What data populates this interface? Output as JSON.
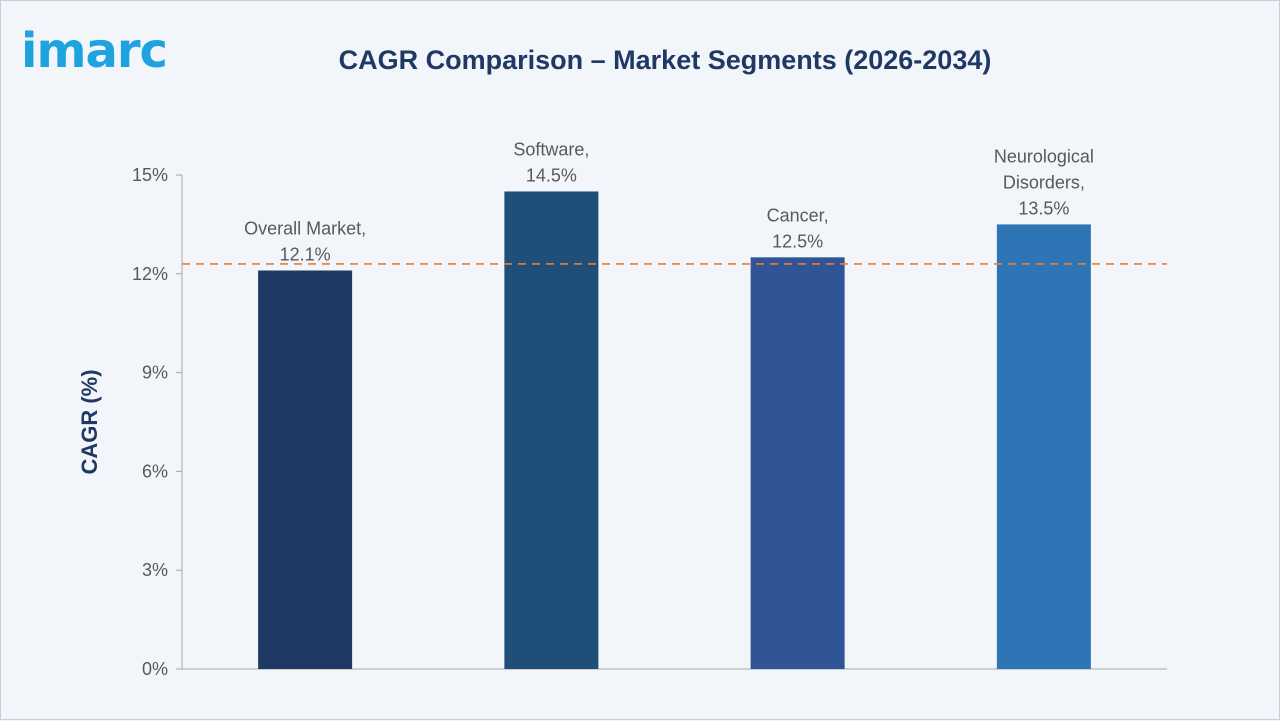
{
  "header": {
    "logo_text": "imarc",
    "title": "CAGR Comparison – Market Segments (2026-2034)"
  },
  "colors": {
    "logo": "#1fa3de",
    "title": "#1f3864",
    "axis_text": "#595959",
    "label_text": "#595959",
    "reference_line": "#ed7d31",
    "bars": [
      "#203864",
      "#1f4e79",
      "#2f5597",
      "#2e75b6"
    ]
  },
  "chart_data": {
    "type": "bar",
    "title": "CAGR Comparison – Market Segments (2026-2034)",
    "xlabel": "",
    "ylabel": "CAGR (%)",
    "ylim": [
      0,
      15
    ],
    "yticks": [
      0,
      3,
      6,
      9,
      12,
      15
    ],
    "ytick_labels": [
      "0%",
      "3%",
      "6%",
      "9%",
      "12%",
      "15%"
    ],
    "grid": false,
    "legend": "none",
    "categories": [
      "Overall Market",
      "Software",
      "Cancer",
      "Neurological Disorders"
    ],
    "values": [
      12.1,
      14.5,
      12.5,
      13.5
    ],
    "data_labels": [
      [
        "Overall Market,",
        "12.1%"
      ],
      [
        "Software,",
        "14.5%"
      ],
      [
        "Cancer,",
        "12.5%"
      ],
      [
        "Neurological",
        "Disorders,",
        "13.5%"
      ]
    ],
    "reference_line": {
      "value": 12.3,
      "style": "dashed"
    }
  }
}
